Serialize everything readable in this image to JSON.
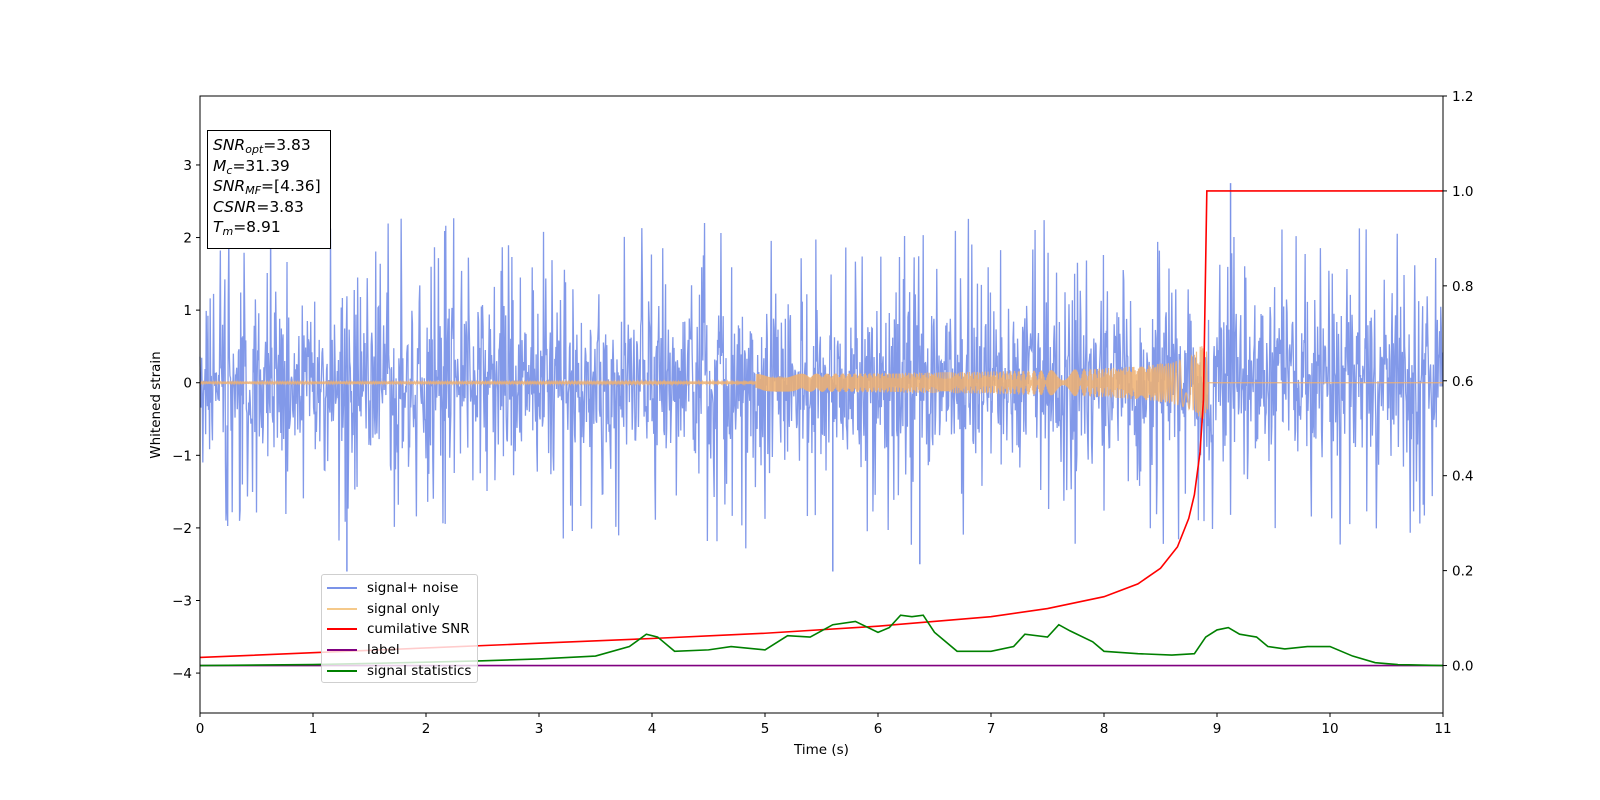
{
  "chart_data": {
    "type": "line",
    "xlabel": "Time (s)",
    "ylabel": "Whitened strain",
    "xlim": [
      0,
      11
    ],
    "ylim": [
      -4.55,
      3.95
    ],
    "y2lim": [
      -0.1,
      1.2
    ],
    "x_ticks": [
      0,
      1,
      2,
      3,
      4,
      5,
      6,
      7,
      8,
      9,
      10,
      11
    ],
    "y_ticks": [
      -4,
      -3,
      -2,
      -1,
      0,
      1,
      2,
      3
    ],
    "y_tick_labels": [
      "−4",
      "−3",
      "−2",
      "−1",
      "0",
      "1",
      "2",
      "3"
    ],
    "y2_ticks": [
      0.0,
      0.2,
      0.4,
      0.6,
      0.8,
      1.0,
      1.2
    ],
    "y2_tick_labels": [
      "0.0",
      "0.2",
      "0.4",
      "0.6",
      "0.8",
      "1.0",
      "1.2"
    ],
    "legend_position": "lower-left",
    "series": [
      {
        "name": "signal+ noise",
        "color": "#7b93e8",
        "axis": "left",
        "description_values": {
          "approx_amplitude_range": [
            -2.6,
            2.75
          ],
          "typical_envelope": [
            -1.4,
            1.4
          ],
          "max_at_x": 9.12
        }
      },
      {
        "name": "signal only",
        "color": "#f0b070",
        "axis": "left",
        "chirp_end_x": 8.92,
        "peak_amplitude": 0.6
      },
      {
        "name": "cumilative SNR",
        "color": "#ff0000",
        "axis": "right",
        "x": [
          0,
          1,
          2,
          3,
          4,
          5,
          6,
          7,
          7.5,
          8,
          8.3,
          8.5,
          8.65,
          8.75,
          8.8,
          8.85,
          8.88,
          8.91,
          9,
          10,
          11
        ],
        "y": [
          0.017,
          0.027,
          0.037,
          0.047,
          0.057,
          0.068,
          0.083,
          0.103,
          0.12,
          0.145,
          0.172,
          0.205,
          0.25,
          0.31,
          0.36,
          0.45,
          0.56,
          1.0,
          1.0,
          1.0,
          1.0
        ]
      },
      {
        "name": "label",
        "color": "#800080",
        "axis": "right",
        "x": [
          0,
          11
        ],
        "y": [
          0,
          0
        ]
      },
      {
        "name": "signal statistics",
        "color": "#008000",
        "axis": "right",
        "x": [
          0,
          1,
          2,
          2.5,
          3,
          3.5,
          3.8,
          3.95,
          4.05,
          4.2,
          4.5,
          4.7,
          5,
          5.2,
          5.4,
          5.6,
          5.8,
          6,
          6.1,
          6.2,
          6.3,
          6.4,
          6.5,
          6.7,
          7,
          7.2,
          7.3,
          7.5,
          7.6,
          7.7,
          7.9,
          8,
          8.3,
          8.6,
          8.8,
          8.9,
          9,
          9.1,
          9.2,
          9.35,
          9.45,
          9.6,
          9.8,
          10,
          10.2,
          10.4,
          10.6,
          11
        ],
        "y": [
          0.0,
          0.002,
          0.007,
          0.01,
          0.014,
          0.02,
          0.04,
          0.066,
          0.06,
          0.03,
          0.033,
          0.04,
          0.033,
          0.063,
          0.06,
          0.086,
          0.093,
          0.07,
          0.08,
          0.106,
          0.103,
          0.106,
          0.07,
          0.03,
          0.03,
          0.04,
          0.066,
          0.06,
          0.086,
          0.073,
          0.05,
          0.03,
          0.025,
          0.022,
          0.025,
          0.06,
          0.075,
          0.08,
          0.066,
          0.06,
          0.04,
          0.035,
          0.04,
          0.04,
          0.02,
          0.006,
          0.002,
          0.0
        ]
      }
    ]
  },
  "stats_box": {
    "snr_opt": {
      "base": "SNR",
      "sub": "opt",
      "value": "=3.83"
    },
    "mc": {
      "base": "M",
      "sub": "c",
      "value": "=31.39"
    },
    "snr_mf": {
      "base": "SNR",
      "sub": "MF",
      "value": "=[4.36]"
    },
    "csnr": {
      "base": "CSNR",
      "value": "=3.83"
    },
    "tm": {
      "base": "T",
      "sub": "m",
      "value": "=8.91"
    }
  }
}
